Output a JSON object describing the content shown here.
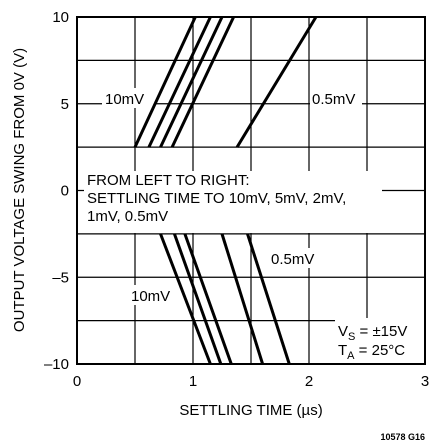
{
  "chart_data": {
    "type": "line",
    "title": "",
    "xlabel": "SETTLING TIME (µs)",
    "ylabel": "OUTPUT VOLTAGE SWING FROM 0V (V)",
    "xlim": [
      0,
      3
    ],
    "ylim": [
      -10,
      10
    ],
    "x_ticks": [
      "0",
      "1",
      "2",
      "3"
    ],
    "y_ticks": [
      "10",
      "5",
      "0",
      "–5",
      "–10"
    ],
    "grid": true,
    "series": [
      {
        "points": [
          [
            0.5,
            2.5
          ],
          [
            1.02,
            10
          ]
        ]
      },
      {
        "points": [
          [
            0.62,
            2.5
          ],
          [
            1.15,
            10
          ]
        ]
      },
      {
        "points": [
          [
            0.72,
            2.5
          ],
          [
            1.25,
            10
          ]
        ]
      },
      {
        "points": [
          [
            0.82,
            2.5
          ],
          [
            1.35,
            10
          ]
        ]
      },
      {
        "points": [
          [
            1.38,
            2.5
          ],
          [
            2.06,
            10
          ]
        ]
      },
      {
        "points": [
          [
            0.72,
            -2.5
          ],
          [
            1.15,
            -10
          ]
        ]
      },
      {
        "points": [
          [
            0.84,
            -2.5
          ],
          [
            1.24,
            -10
          ]
        ]
      },
      {
        "points": [
          [
            0.93,
            -2.5
          ],
          [
            1.33,
            -10
          ]
        ]
      },
      {
        "points": [
          [
            1.25,
            -2.5
          ],
          [
            1.6,
            -10
          ]
        ]
      },
      {
        "points": [
          [
            1.47,
            -2.5
          ],
          [
            1.83,
            -10
          ]
        ]
      }
    ],
    "annotations": {
      "upper_left": "10mV",
      "upper_right": "0.5mV",
      "lower_left": "10mV",
      "lower_right": "0.5mV",
      "note_line1": "FROM LEFT TO RIGHT:",
      "note_line2": "SETTLING TIME TO 10mV, 5mV, 2mV,",
      "note_line3": "1mV, 0.5mV",
      "vs_main": "V",
      "vs_sub": "S",
      "vs_value": " = ±15V",
      "ta_main": "T",
      "ta_sub": "A",
      "ta_value": " = 25°C"
    },
    "figure_id": "10578 G16"
  }
}
